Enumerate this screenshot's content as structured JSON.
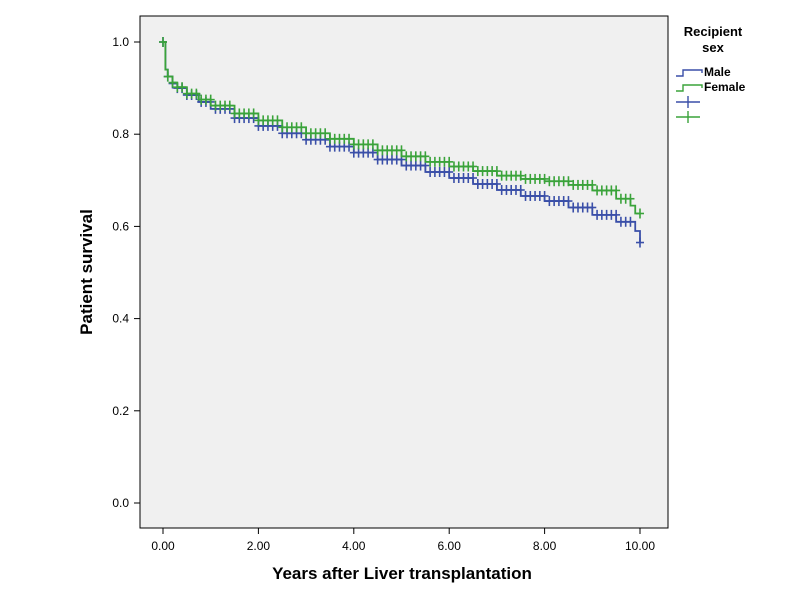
{
  "chart_data": {
    "type": "line",
    "title": "",
    "xlabel": "Years after Liver transplantation",
    "ylabel": "Patient survival",
    "xlim": [
      0,
      10
    ],
    "ylim": [
      0,
      1
    ],
    "x_ticks": [
      "0.00",
      "2.00",
      "4.00",
      "6.00",
      "8.00",
      "10.00"
    ],
    "y_ticks": [
      "0.0",
      "0.2",
      "0.4",
      "0.6",
      "0.8",
      "1.0"
    ],
    "grid": false,
    "legend_position": "right",
    "legend_title": "Recipient sex",
    "legend_title_lines": [
      "Recipient",
      "sex"
    ],
    "series": [
      {
        "name": "Male",
        "color": "#3a4fa8",
        "x": [
          0,
          0.05,
          0.1,
          0.2,
          0.3,
          0.5,
          0.75,
          1.0,
          1.5,
          2.0,
          2.5,
          3.0,
          3.5,
          4.0,
          4.5,
          5.0,
          5.5,
          6.0,
          6.5,
          7.0,
          7.5,
          8.0,
          8.5,
          9.0,
          9.5,
          9.9,
          10.0
        ],
        "y": [
          1.0,
          0.94,
          0.925,
          0.91,
          0.9,
          0.885,
          0.87,
          0.855,
          0.835,
          0.818,
          0.802,
          0.788,
          0.773,
          0.76,
          0.745,
          0.732,
          0.718,
          0.705,
          0.692,
          0.679,
          0.666,
          0.655,
          0.641,
          0.625,
          0.61,
          0.59,
          0.565
        ]
      },
      {
        "name": "Female",
        "color": "#3aa33a",
        "x": [
          0,
          0.05,
          0.1,
          0.2,
          0.3,
          0.5,
          0.75,
          1.0,
          1.5,
          2.0,
          2.5,
          3.0,
          3.5,
          4.0,
          4.5,
          5.0,
          5.5,
          6.0,
          6.5,
          7.0,
          7.5,
          8.0,
          8.5,
          9.0,
          9.5,
          9.8,
          9.9,
          10.0
        ],
        "y": [
          1.0,
          0.94,
          0.925,
          0.912,
          0.902,
          0.888,
          0.875,
          0.862,
          0.845,
          0.83,
          0.815,
          0.802,
          0.79,
          0.778,
          0.765,
          0.752,
          0.74,
          0.73,
          0.72,
          0.71,
          0.703,
          0.698,
          0.69,
          0.678,
          0.66,
          0.645,
          0.628,
          0.628
        ]
      }
    ]
  }
}
